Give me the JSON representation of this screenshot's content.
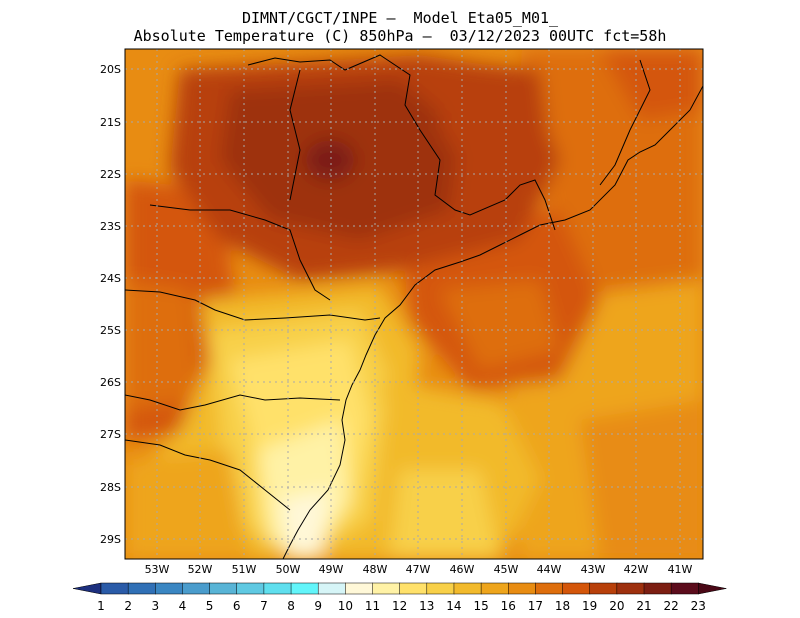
{
  "header": {
    "line1": "DIMNT/CGCT/INPE —  Model Eta05_M01_",
    "line2": "Absolute Temperature (C) 850hPa —  03/12/2023 00UTC fct=58h"
  },
  "map": {
    "lat_ticks": [
      "20S",
      "21S",
      "22S",
      "23S",
      "24S",
      "25S",
      "26S",
      "27S",
      "28S",
      "29S"
    ],
    "lon_ticks": [
      "53W",
      "52W",
      "51W",
      "50W",
      "49W",
      "48W",
      "47W",
      "46W",
      "45W",
      "44W",
      "43W",
      "42W",
      "41W"
    ],
    "lon_range": [
      -53.8,
      -40.4
    ],
    "lat_range": [
      -29.4,
      -19.7
    ],
    "gridlines": true
  },
  "colorbar": {
    "labels": [
      "1",
      "2",
      "3",
      "4",
      "5",
      "6",
      "7",
      "8",
      "9",
      "10",
      "11",
      "12",
      "13",
      "14",
      "15",
      "16",
      "17",
      "18",
      "19",
      "20",
      "21",
      "22",
      "23"
    ],
    "colors": [
      "#213f99",
      "#2a5ba8",
      "#3070b6",
      "#3a86c2",
      "#4a9ccc",
      "#58b4d6",
      "#5fc9e2",
      "#5fdfee",
      "#62f5fa",
      "#d6f5f7",
      "#fff8d8",
      "#fff2a6",
      "#ffe16a",
      "#f8d048",
      "#f2ba2c",
      "#eea51c",
      "#e88c12",
      "#de6e0c",
      "#d4560a",
      "#b8400a",
      "#9e300e",
      "#7c1e12",
      "#5c0c1c"
    ],
    "low_arrow_color": "#1c2f7e",
    "high_arrow_color": "#4a0816"
  }
}
